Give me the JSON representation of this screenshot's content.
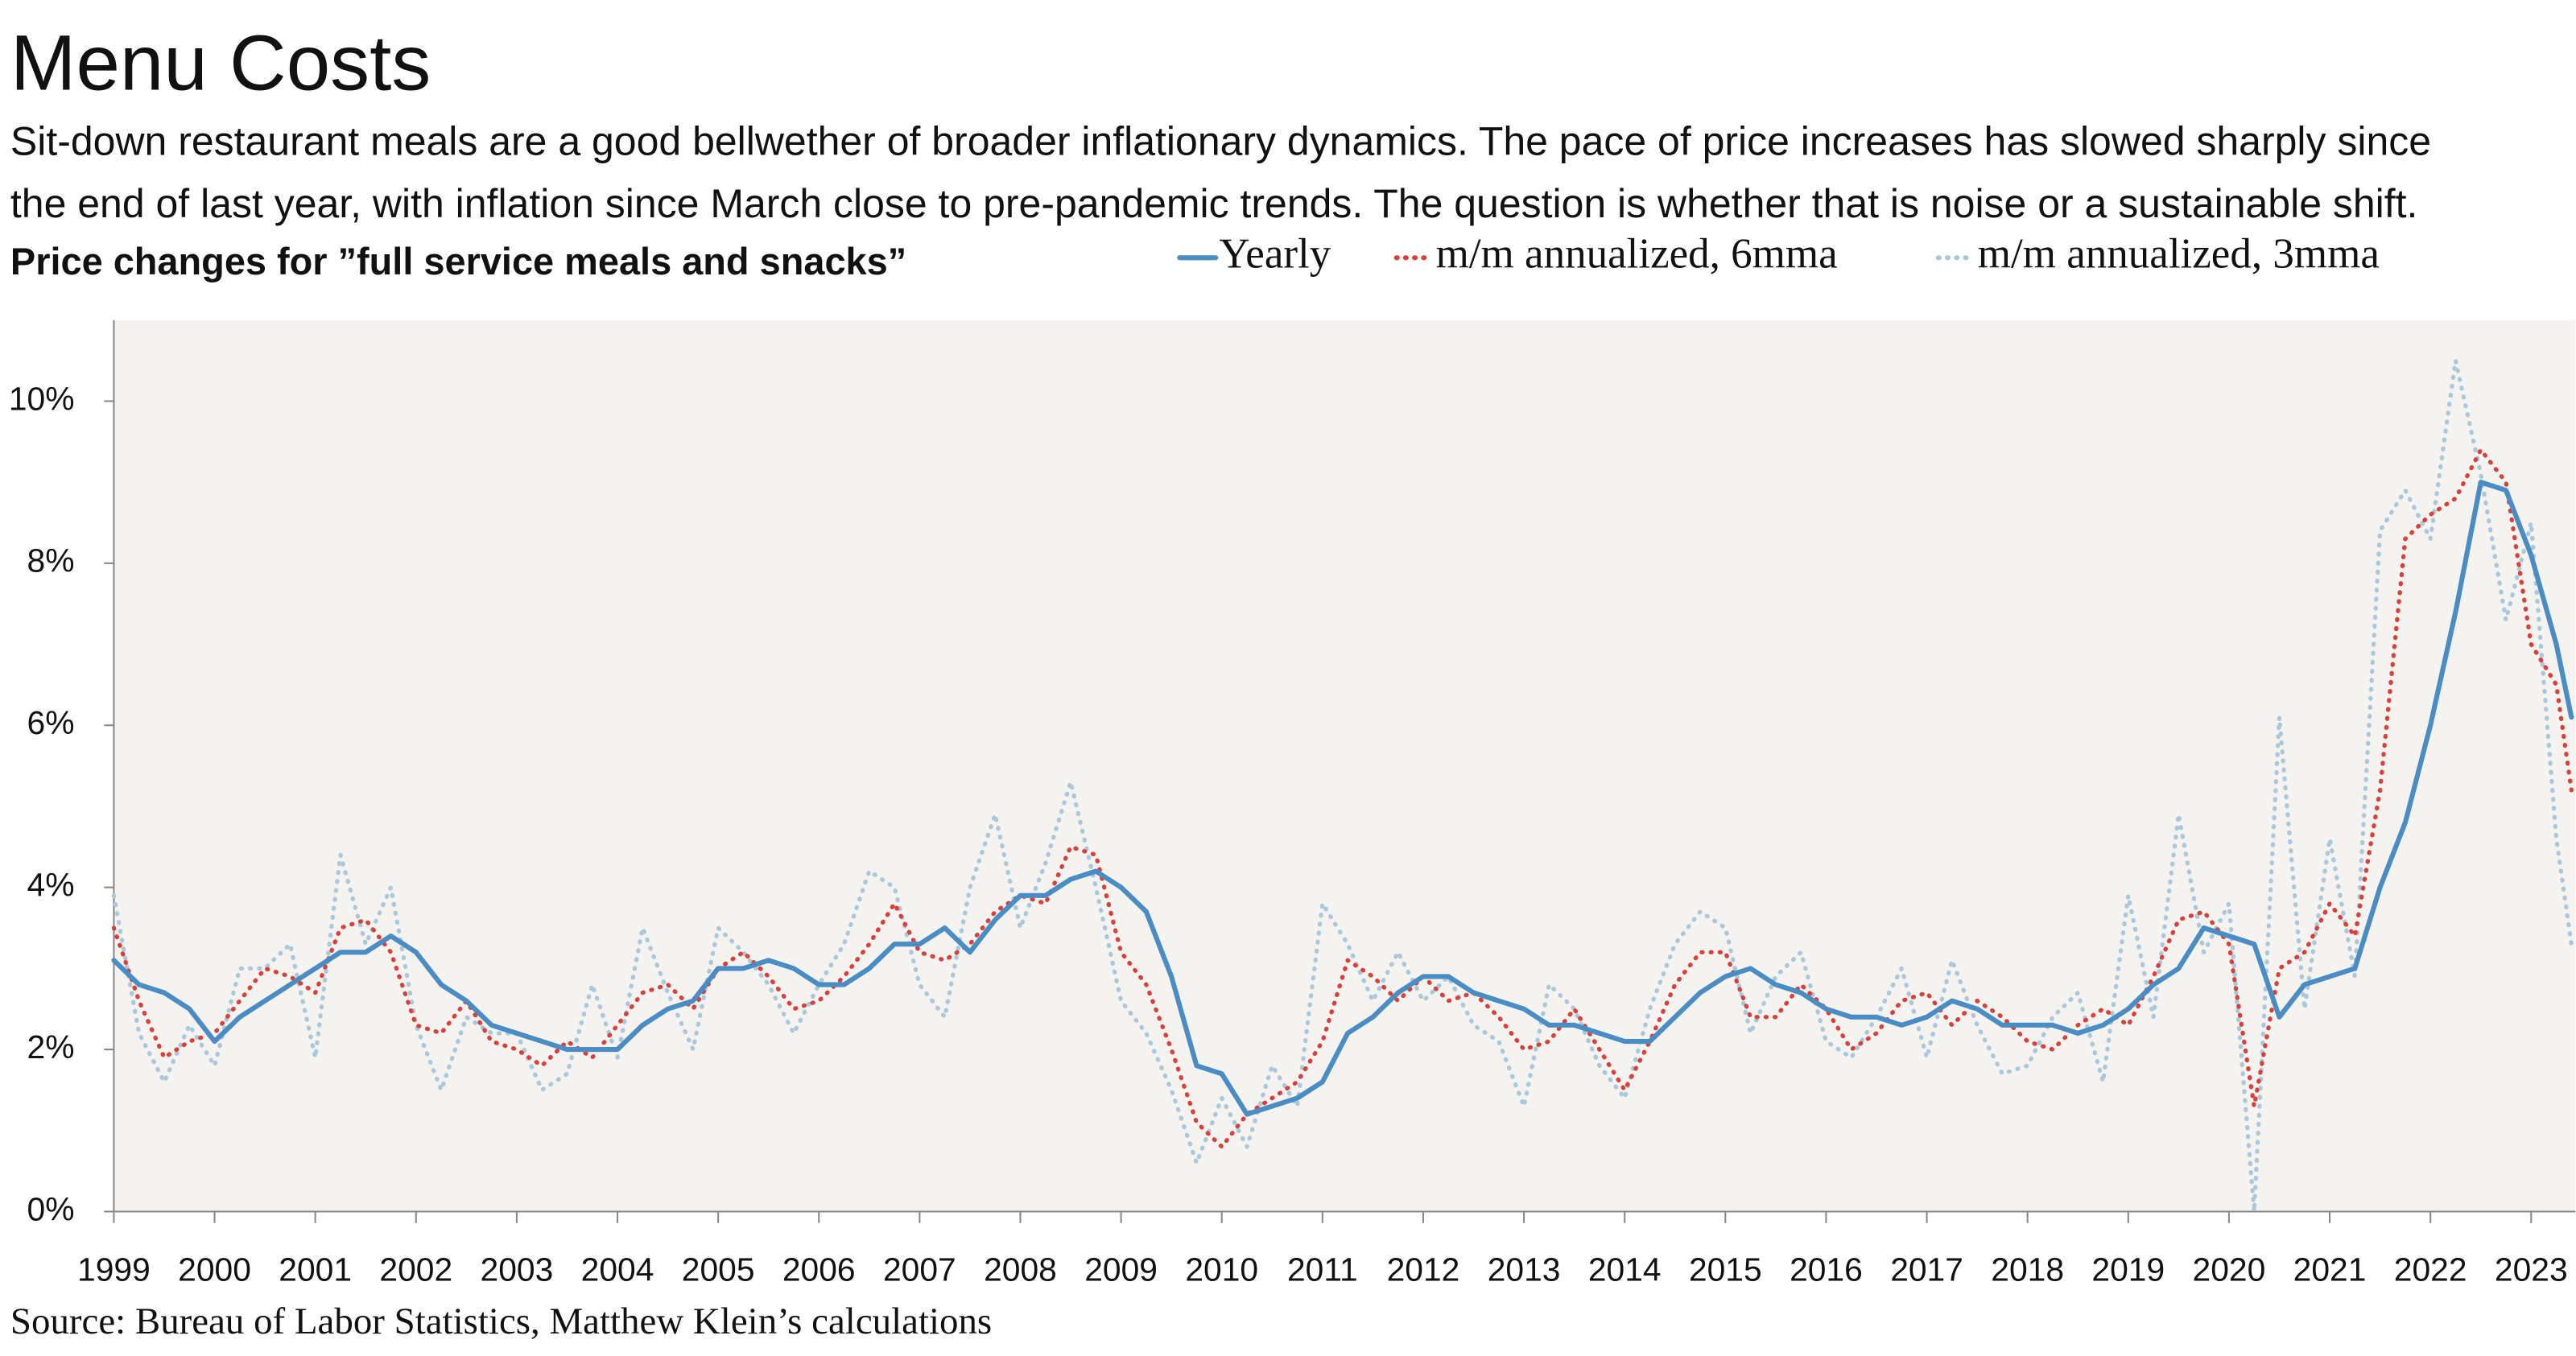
{
  "chart_data": {
    "type": "line",
    "title": "Menu Costs",
    "subtitle": [
      "Sit-down restaurant meals are a good bellwether of broader inflationary dynamics. The pace of price increases has slowed sharply since",
      "the end of last year, with inflation since March close to pre-pandemic trends. The question is whether that is noise or a sustainable shift."
    ],
    "chart_label": "Price changes for ”full service meals and snacks”",
    "source": "Source: Bureau of Labor Statistics, Matthew Klein’s calculations",
    "x": [
      1999,
      1999.25,
      1999.5,
      1999.75,
      2000,
      2000.25,
      2000.5,
      2000.75,
      2001,
      2001.25,
      2001.5,
      2001.75,
      2002,
      2002.25,
      2002.5,
      2002.75,
      2003,
      2003.25,
      2003.5,
      2003.75,
      2004,
      2004.25,
      2004.5,
      2004.75,
      2005,
      2005.25,
      2005.5,
      2005.75,
      2006,
      2006.25,
      2006.5,
      2006.75,
      2007,
      2007.25,
      2007.5,
      2007.75,
      2008,
      2008.25,
      2008.5,
      2008.75,
      2009,
      2009.25,
      2009.5,
      2009.75,
      2010,
      2010.25,
      2010.5,
      2010.75,
      2011,
      2011.25,
      2011.5,
      2011.75,
      2012,
      2012.25,
      2012.5,
      2012.75,
      2013,
      2013.25,
      2013.5,
      2013.75,
      2014,
      2014.25,
      2014.5,
      2014.75,
      2015,
      2015.25,
      2015.5,
      2015.75,
      2016,
      2016.25,
      2016.5,
      2016.75,
      2017,
      2017.25,
      2017.5,
      2017.75,
      2018,
      2018.25,
      2018.5,
      2018.75,
      2019,
      2019.25,
      2019.5,
      2019.75,
      2020,
      2020.25,
      2020.5,
      2020.75,
      2021,
      2021.25,
      2021.5,
      2021.75,
      2022,
      2022.25,
      2022.5,
      2022.75,
      2023,
      2023.25,
      2023.4
    ],
    "series": [
      {
        "name": "Yearly",
        "color": "#4a8cc4",
        "style": "solid",
        "values": [
          3.1,
          2.8,
          2.7,
          2.5,
          2.1,
          2.4,
          2.6,
          2.8,
          3.0,
          3.2,
          3.2,
          3.4,
          3.2,
          2.8,
          2.6,
          2.3,
          2.2,
          2.1,
          2.0,
          2.0,
          2.0,
          2.3,
          2.5,
          2.6,
          3.0,
          3.0,
          3.1,
          3.0,
          2.8,
          2.8,
          3.0,
          3.3,
          3.3,
          3.5,
          3.2,
          3.6,
          3.9,
          3.9,
          4.1,
          4.2,
          4.0,
          3.7,
          2.9,
          1.8,
          1.7,
          1.2,
          1.3,
          1.4,
          1.6,
          2.2,
          2.4,
          2.7,
          2.9,
          2.9,
          2.7,
          2.6,
          2.5,
          2.3,
          2.3,
          2.2,
          2.1,
          2.1,
          2.4,
          2.7,
          2.9,
          3.0,
          2.8,
          2.7,
          2.5,
          2.4,
          2.4,
          2.3,
          2.4,
          2.6,
          2.5,
          2.3,
          2.3,
          2.3,
          2.2,
          2.3,
          2.5,
          2.8,
          3.0,
          3.5,
          3.4,
          3.3,
          2.4,
          2.8,
          2.9,
          3.0,
          4.0,
          4.8,
          6.0,
          7.4,
          9.0,
          8.9,
          8.1,
          7.0,
          6.1
        ]
      },
      {
        "name": "m/m annualized, 6mma",
        "color": "#d9403a",
        "style": "dotted",
        "values": [
          3.5,
          2.6,
          1.9,
          2.1,
          2.2,
          2.6,
          3.0,
          2.9,
          2.7,
          3.5,
          3.6,
          3.2,
          2.3,
          2.2,
          2.6,
          2.1,
          2.0,
          1.8,
          2.1,
          1.9,
          2.3,
          2.7,
          2.8,
          2.5,
          3.0,
          3.2,
          2.9,
          2.5,
          2.6,
          2.9,
          3.3,
          3.8,
          3.2,
          3.1,
          3.3,
          3.7,
          3.9,
          3.8,
          4.5,
          4.4,
          3.2,
          2.8,
          2.0,
          1.1,
          0.8,
          1.2,
          1.4,
          1.6,
          2.1,
          3.1,
          2.9,
          2.6,
          2.9,
          2.6,
          2.7,
          2.4,
          2.0,
          2.1,
          2.5,
          2.0,
          1.5,
          2.1,
          2.8,
          3.2,
          3.2,
          2.4,
          2.4,
          2.8,
          2.5,
          2.0,
          2.2,
          2.6,
          2.7,
          2.3,
          2.6,
          2.4,
          2.1,
          2.0,
          2.3,
          2.5,
          2.3,
          2.9,
          3.6,
          3.7,
          3.3,
          1.3,
          3.0,
          3.2,
          3.8,
          3.4,
          5.2,
          8.3,
          8.6,
          8.8,
          9.4,
          9.0,
          7.0,
          6.5,
          5.2
        ]
      },
      {
        "name": "m/m annualized, 3mma",
        "color": "#a9c8dc",
        "style": "dotted",
        "values": [
          3.9,
          2.2,
          1.6,
          2.3,
          1.8,
          3.0,
          3.0,
          3.3,
          1.9,
          4.4,
          3.3,
          4.0,
          2.3,
          1.5,
          2.4,
          2.2,
          2.2,
          1.5,
          1.7,
          2.8,
          1.9,
          3.5,
          2.7,
          2.0,
          3.5,
          3.2,
          2.8,
          2.2,
          2.8,
          3.3,
          4.2,
          4.0,
          2.8,
          2.4,
          4.0,
          4.9,
          3.5,
          4.3,
          5.3,
          4.0,
          2.6,
          2.2,
          1.5,
          0.6,
          1.4,
          0.8,
          1.8,
          1.3,
          3.8,
          3.3,
          2.6,
          3.2,
          2.6,
          2.9,
          2.3,
          2.1,
          1.3,
          2.8,
          2.5,
          1.8,
          1.4,
          2.5,
          3.3,
          3.7,
          3.5,
          2.2,
          2.9,
          3.2,
          2.1,
          1.9,
          2.4,
          3.0,
          1.9,
          3.1,
          2.3,
          1.7,
          1.8,
          2.4,
          2.7,
          1.6,
          3.9,
          2.4,
          4.9,
          3.2,
          3.8,
          0.0,
          6.1,
          2.5,
          4.6,
          2.9,
          8.4,
          8.9,
          8.3,
          10.5,
          9.1,
          7.3,
          8.5,
          4.6,
          3.3
        ]
      }
    ],
    "xlim": [
      1999,
      2023.44
    ],
    "xticks": [
      1999,
      2000,
      2001,
      2002,
      2003,
      2004,
      2005,
      2006,
      2007,
      2008,
      2009,
      2010,
      2011,
      2012,
      2013,
      2014,
      2015,
      2016,
      2017,
      2018,
      2019,
      2020,
      2021,
      2022,
      2023
    ],
    "ylim": [
      0,
      11
    ],
    "yticks": [
      {
        "value": 0,
        "label": "0%"
      },
      {
        "value": 2,
        "label": "2%"
      },
      {
        "value": 4,
        "label": "4%"
      },
      {
        "value": 6,
        "label": "6%"
      },
      {
        "value": 8,
        "label": "8%"
      },
      {
        "value": 10,
        "label": "10%"
      }
    ],
    "background": "#f5f3f0"
  }
}
